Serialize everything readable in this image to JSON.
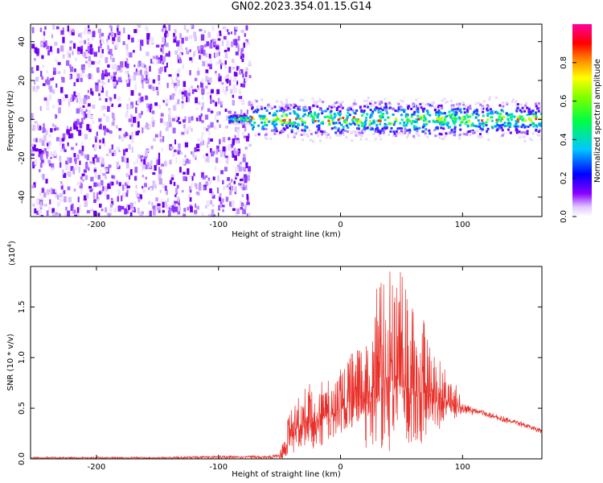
{
  "figure": {
    "title": "GN02.2023.354.01.15.G14"
  },
  "chart_data": [
    {
      "type": "heatmap",
      "xlabel": "Height of straight line (km)",
      "ylabel": "Frequency (Hz)",
      "xlim": [
        -254,
        165
      ],
      "ylim": [
        -50,
        49
      ],
      "xticks": [
        -200,
        -100,
        0,
        100
      ],
      "yticks": [
        -40,
        -20,
        0,
        20,
        40
      ],
      "colorbar": {
        "label": "Normalized spectral amplitude",
        "range": [
          0,
          1
        ],
        "ticks": [
          "0.0",
          "0.2",
          "0.4",
          "0.6",
          "0.8"
        ],
        "colormap": "rainbow (white-purple-blue-cyan-green-yellow-red-magenta)"
      },
      "noise_region_x": [
        -254,
        -75
      ],
      "signal_band": {
        "x_start": -92,
        "x_end": 165,
        "center_frequency_hz": 0,
        "approx_half_width_hz": 4
      },
      "colors": {
        "low": "#e8d8ff",
        "mid": "#7a00ff",
        "high": "#ff0000"
      }
    },
    {
      "type": "line",
      "xlabel": "Height of straight line (km)",
      "ylabel": "SNR (10 * v/v)",
      "y_multiplier_label": "(x10",
      "y_multiplier_exp": "4",
      "y_multiplier_close": ")",
      "xlim": [
        -254,
        165
      ],
      "ylim": [
        0,
        1.9
      ],
      "xticks": [
        -200,
        -100,
        0,
        100
      ],
      "yticks": [
        "0.0",
        "0.5",
        "1.0",
        "1.5"
      ],
      "line_color": "#e8302a",
      "series": [
        {
          "x": [
            -254,
            -200,
            -150,
            -100,
            -60,
            -50,
            -45,
            -40,
            -35,
            -30,
            -25,
            -20,
            -15,
            -10,
            -5,
            0,
            5,
            10,
            15,
            20,
            25,
            30,
            35,
            40,
            45,
            50,
            55,
            60,
            65,
            70,
            75,
            80,
            85,
            90,
            95,
            100,
            110,
            120,
            130,
            140,
            150,
            160,
            165
          ],
          "values": [
            0.01,
            0.01,
            0.01,
            0.02,
            0.02,
            0.03,
            0.12,
            0.25,
            0.3,
            0.32,
            0.35,
            0.38,
            0.4,
            0.42,
            0.45,
            0.5,
            0.55,
            0.58,
            0.6,
            0.62,
            0.65,
            0.68,
            0.7,
            0.7,
            0.72,
            0.72,
            0.7,
            0.68,
            0.65,
            0.62,
            0.6,
            0.58,
            0.56,
            0.55,
            0.53,
            0.5,
            0.47,
            0.44,
            0.4,
            0.37,
            0.34,
            0.3,
            0.28
          ],
          "upper_envelope": [
            0.02,
            0.02,
            0.02,
            0.03,
            0.03,
            0.05,
            0.3,
            0.55,
            0.6,
            0.7,
            0.75,
            0.8,
            0.85,
            0.8,
            0.75,
            0.9,
            1.0,
            1.05,
            1.1,
            1.2,
            1.5,
            1.7,
            1.8,
            1.9,
            1.7,
            1.9,
            1.6,
            1.5,
            1.45,
            1.4,
            1.2,
            1.05,
            0.9,
            0.95,
            0.85,
            0.55,
            0.5,
            0.47,
            0.43,
            0.4,
            0.36,
            0.32,
            0.3
          ],
          "lower_envelope": [
            0.0,
            0.0,
            0.0,
            0.0,
            0.0,
            0.0,
            0.0,
            0.05,
            0.08,
            0.1,
            0.1,
            0.1,
            0.12,
            0.15,
            0.2,
            0.25,
            0.3,
            0.3,
            0.3,
            0.1,
            0.08,
            0.05,
            0.05,
            0.05,
            0.1,
            0.08,
            0.1,
            0.1,
            0.12,
            0.15,
            0.2,
            0.25,
            0.3,
            0.35,
            0.4,
            0.45,
            0.43,
            0.41,
            0.37,
            0.34,
            0.31,
            0.27,
            0.25
          ]
        }
      ]
    }
  ]
}
